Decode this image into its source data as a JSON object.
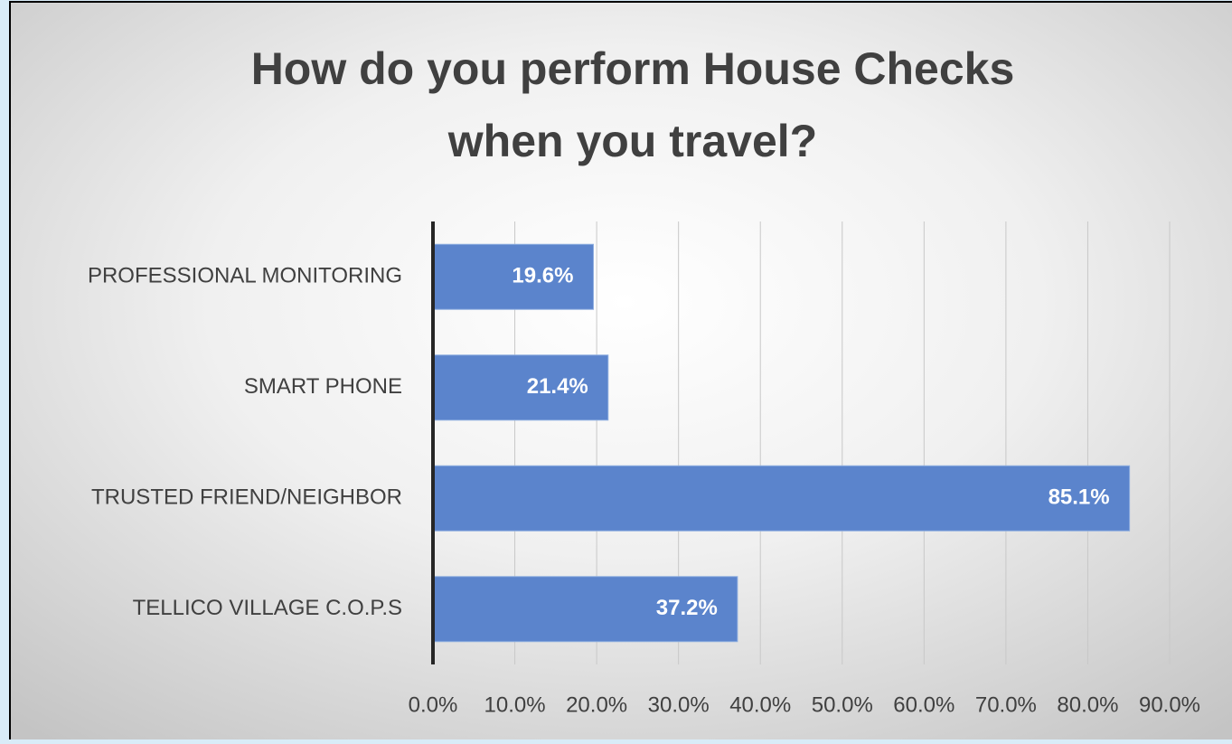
{
  "chart_data": {
    "type": "bar",
    "orientation": "horizontal",
    "title": [
      "How do you perform House Checks",
      "when you travel?"
    ],
    "categories": [
      "PROFESSIONAL MONITORING",
      "SMART PHONE",
      "TRUSTED FRIEND/NEIGHBOR",
      "TELLICO VILLAGE C.O.P.S"
    ],
    "values": [
      19.6,
      21.4,
      85.1,
      37.2
    ],
    "value_labels": [
      "19.6%",
      "21.4%",
      "85.1%",
      "37.2%"
    ],
    "color": "#5b84cc",
    "xlim": [
      0,
      90
    ],
    "xticks": [
      {
        "value": 0,
        "label": "0.0%"
      },
      {
        "value": 10,
        "label": "10.0%"
      },
      {
        "value": 20,
        "label": "20.0%"
      },
      {
        "value": 30,
        "label": "30.0%"
      },
      {
        "value": 40,
        "label": "40.0%"
      },
      {
        "value": 50,
        "label": "50.0%"
      },
      {
        "value": 60,
        "label": "60.0%"
      },
      {
        "value": 70,
        "label": "70.0%"
      },
      {
        "value": 80,
        "label": "80.0%"
      },
      {
        "value": 90,
        "label": "90.0%"
      }
    ],
    "grid": true
  }
}
